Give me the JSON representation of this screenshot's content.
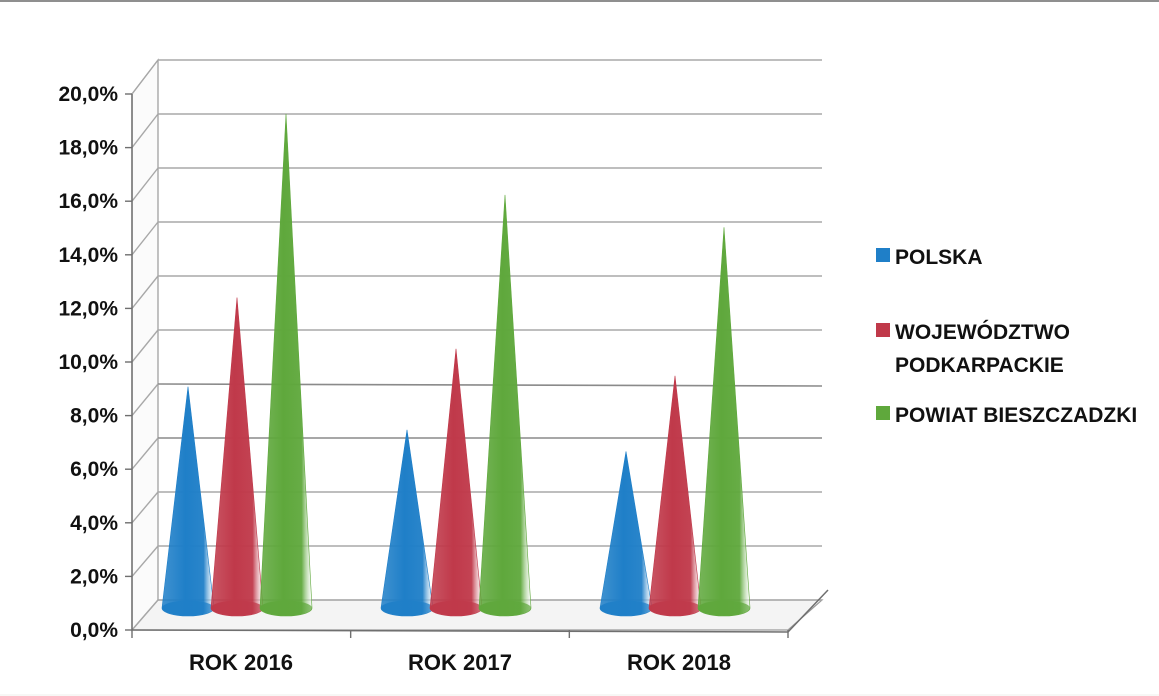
{
  "chart_data": {
    "type": "bar",
    "style": "3d-cone",
    "categories": [
      "ROK 2016",
      "ROK 2017",
      "ROK 2018"
    ],
    "series": [
      {
        "name": "POLSKA",
        "color": "#1f7fc8",
        "values": [
          8.2,
          6.6,
          5.8
        ]
      },
      {
        "name": "WOJEWÓDZTWO PODKARPACKIE",
        "color": "#c0394a",
        "values": [
          11.5,
          9.6,
          8.6
        ]
      },
      {
        "name": "POWIAT BIESZCZADZKI",
        "color": "#5fa83c",
        "values": [
          18.3,
          15.3,
          14.1
        ]
      }
    ],
    "y_tick_labels": [
      "0,0%",
      "2,0%",
      "4,0%",
      "6,0%",
      "8,0%",
      "10,0%",
      "12,0%",
      "14,0%",
      "16,0%",
      "18,0%",
      "20,0%"
    ],
    "ylim": [
      0,
      20
    ],
    "y_format": "percent",
    "grid": true,
    "legend_position": "right",
    "title": "",
    "xlabel": "",
    "ylabel": ""
  }
}
